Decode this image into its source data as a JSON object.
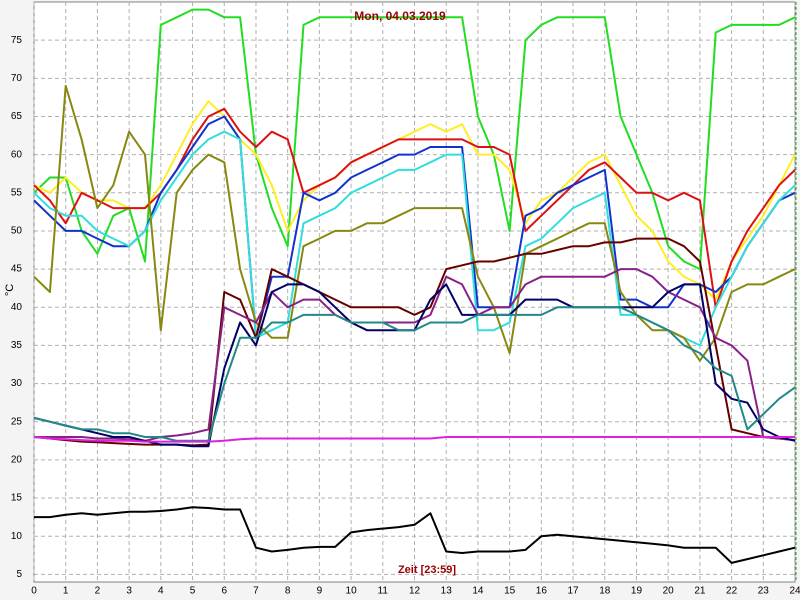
{
  "chart_data": {
    "type": "line",
    "title": "Mon, 04.03.2019",
    "xlabel": "Zeit [23:59]",
    "ylabel": "°C",
    "x": [
      0,
      0.5,
      1,
      1.5,
      2,
      2.5,
      3,
      3.5,
      4,
      4.5,
      5,
      5.5,
      6,
      6.5,
      7,
      7.5,
      8,
      8.5,
      9,
      9.5,
      10,
      10.5,
      11,
      11.5,
      12,
      12.5,
      13,
      13.5,
      14,
      14.5,
      15,
      15.5,
      16,
      16.5,
      17,
      17.5,
      18,
      18.5,
      19,
      19.5,
      20,
      20.5,
      21,
      21.5,
      22,
      22.5,
      23,
      23.5,
      24
    ],
    "series": [
      {
        "color": "#22dd22",
        "values": [
          55,
          57,
          57,
          50,
          47,
          52,
          53,
          46,
          77,
          78,
          79,
          79,
          78,
          78,
          60,
          53,
          48,
          77,
          78,
          78,
          78,
          78,
          78,
          78,
          78,
          78,
          78,
          78,
          65,
          60,
          50,
          75,
          77,
          78,
          78,
          78,
          78,
          65,
          60,
          55,
          48,
          46,
          45,
          76,
          77,
          77,
          77,
          77,
          78
        ]
      },
      {
        "color": "#ffee22",
        "values": [
          56,
          55,
          57,
          55,
          54,
          54,
          53,
          53,
          56,
          60,
          64,
          67,
          65,
          62,
          60,
          56,
          50,
          54,
          56,
          57,
          59,
          60,
          61,
          62,
          63,
          64,
          63,
          64,
          60,
          60,
          58,
          51,
          54,
          55,
          57,
          59,
          60,
          56,
          52,
          50,
          46,
          44,
          43,
          41,
          46,
          49,
          52,
          56,
          60
        ]
      },
      {
        "color": "#dd1111",
        "values": [
          56,
          54,
          51,
          55,
          54,
          53,
          53,
          53,
          55,
          58,
          62,
          65,
          66,
          63,
          61,
          63,
          62,
          55,
          56,
          57,
          59,
          60,
          61,
          62,
          62,
          62,
          62,
          62,
          61,
          61,
          60,
          50,
          52,
          54,
          56,
          58,
          59,
          57,
          55,
          55,
          54,
          55,
          54,
          40,
          46,
          50,
          53,
          56,
          58
        ]
      },
      {
        "color": "#1133cc",
        "values": [
          54,
          52,
          50,
          50,
          49,
          48,
          48,
          50,
          55,
          58,
          61,
          64,
          65,
          62,
          36,
          44,
          44,
          55,
          54,
          55,
          57,
          58,
          59,
          60,
          60,
          61,
          61,
          61,
          40,
          40,
          40,
          52,
          53,
          55,
          56,
          57,
          58,
          41,
          41,
          40,
          40,
          43,
          43,
          42,
          44,
          48,
          51,
          54,
          55
        ]
      },
      {
        "color": "#33dddd",
        "values": [
          55,
          53,
          52,
          52,
          50,
          49,
          48,
          50,
          54,
          57,
          60,
          62,
          63,
          62,
          36,
          37,
          38,
          51,
          52,
          53,
          55,
          56,
          57,
          58,
          58,
          59,
          60,
          60,
          37,
          37,
          38,
          48,
          49,
          51,
          53,
          54,
          55,
          39,
          39,
          38,
          37,
          36,
          35,
          40,
          44,
          48,
          51,
          54,
          56
        ]
      },
      {
        "color": "#888811",
        "values": [
          44,
          42,
          69,
          62,
          53,
          56,
          63,
          60,
          37,
          55,
          58,
          60,
          59,
          45,
          38,
          36,
          36,
          48,
          49,
          50,
          50,
          51,
          51,
          52,
          53,
          53,
          53,
          53,
          44,
          40,
          34,
          47,
          48,
          49,
          50,
          51,
          51,
          42,
          39,
          37,
          37,
          36,
          33,
          36,
          42,
          43,
          43,
          44,
          45
        ]
      },
      {
        "color": "#660000",
        "values": [
          23,
          22.8,
          22.6,
          22.4,
          22.3,
          22.2,
          22.1,
          22,
          22,
          22,
          21.9,
          22,
          42,
          41,
          36,
          45,
          44,
          43,
          42,
          41,
          40,
          40,
          40,
          40,
          39,
          40,
          45,
          45.5,
          46,
          46,
          46.5,
          47,
          47,
          47.5,
          48,
          48,
          48.5,
          48.5,
          49,
          49,
          49,
          48,
          46,
          35,
          24,
          23.5,
          23,
          22.8,
          22.6
        ]
      },
      {
        "color": "#882288",
        "values": [
          23,
          23,
          23,
          23,
          22.8,
          22.8,
          22.7,
          22.5,
          23,
          23.2,
          23.5,
          24,
          40,
          39,
          38,
          42,
          40,
          41,
          41,
          39,
          38,
          38,
          38,
          38,
          38,
          39,
          44,
          43,
          39,
          40,
          40,
          43,
          44,
          44,
          44,
          44,
          44,
          45,
          45,
          44,
          42,
          41,
          40,
          36,
          35,
          33,
          23,
          22.8,
          22.6
        ]
      },
      {
        "color": "#000066",
        "values": [
          25.5,
          25,
          24.5,
          24,
          23.5,
          23,
          23,
          22.5,
          22,
          22,
          21.8,
          21.8,
          32,
          38,
          35,
          42,
          43,
          43,
          42,
          40,
          38,
          37,
          37,
          37,
          37,
          41,
          43,
          39,
          39,
          39,
          39,
          41,
          41,
          41,
          40,
          40,
          40,
          40,
          40,
          40,
          42,
          43,
          43,
          30,
          28,
          27.5,
          24,
          23,
          22.5
        ]
      },
      {
        "color": "#228888",
        "values": [
          25.5,
          25,
          24.5,
          24,
          24,
          23.5,
          23.5,
          23,
          23,
          22.5,
          22.5,
          22.5,
          30,
          36,
          36,
          38,
          38,
          39,
          39,
          39,
          38,
          38,
          38,
          37,
          37,
          38,
          38,
          38,
          39,
          39,
          39,
          39,
          39,
          40,
          40,
          40,
          40,
          40,
          39,
          38,
          37,
          35,
          34,
          32,
          31,
          24,
          26,
          28,
          29.5
        ]
      },
      {
        "color": "#dd22dd",
        "values": [
          23,
          22.8,
          22.7,
          22.6,
          22.5,
          22.5,
          22.5,
          22.4,
          22.4,
          22.4,
          22.4,
          22.4,
          22.5,
          22.7,
          22.8,
          22.8,
          22.8,
          22.8,
          22.8,
          22.8,
          22.8,
          22.8,
          22.8,
          22.8,
          22.8,
          22.8,
          23,
          23,
          23,
          23,
          23,
          23,
          23,
          23,
          23,
          23,
          23,
          23,
          23,
          23,
          23,
          23,
          23,
          23,
          23,
          23,
          23,
          23,
          23
        ]
      },
      {
        "color": "#000000",
        "values": [
          12.5,
          12.5,
          12.8,
          13,
          12.8,
          13,
          13.2,
          13.2,
          13.3,
          13.5,
          13.8,
          13.7,
          13.5,
          13.5,
          8.5,
          8,
          8.2,
          8.5,
          8.6,
          8.6,
          10.5,
          10.8,
          11,
          11.2,
          11.5,
          13,
          8,
          7.8,
          8,
          8,
          8,
          8.2,
          10,
          10.2,
          10,
          9.8,
          9.6,
          9.4,
          9.2,
          9,
          8.8,
          8.5,
          8.5,
          8.5,
          6.5,
          7,
          7.5,
          8,
          8.5
        ]
      }
    ],
    "xlim": [
      0,
      24
    ],
    "xticks": [
      0,
      1,
      2,
      3,
      4,
      5,
      6,
      7,
      8,
      9,
      10,
      11,
      12,
      13,
      14,
      15,
      16,
      17,
      18,
      19,
      20,
      21,
      22,
      23,
      24
    ],
    "ylim": [
      4,
      80
    ],
    "yticks": [
      5,
      10,
      15,
      20,
      25,
      30,
      35,
      40,
      45,
      50,
      55,
      60,
      65,
      70,
      75
    ],
    "grid": true
  }
}
